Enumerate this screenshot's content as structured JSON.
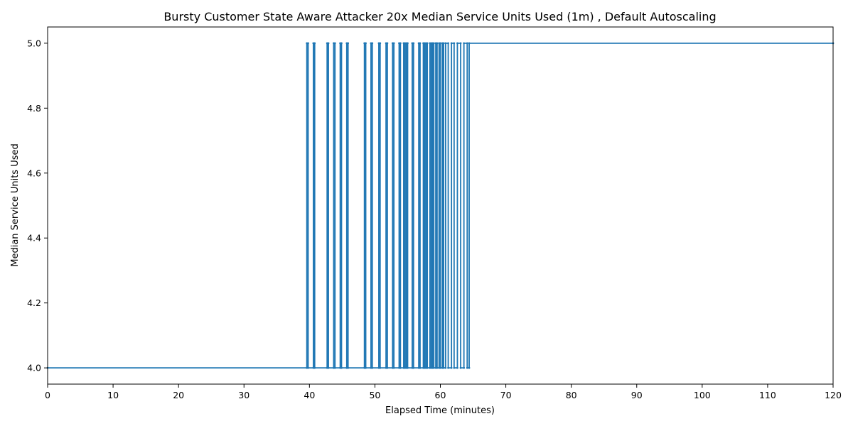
{
  "chart_data": {
    "type": "line",
    "title": "Bursty Customer State Aware Attacker 20x Median Service Units Used (1m) , Default Autoscaling",
    "xlabel": "Elapsed Time (minutes)",
    "ylabel": "Median Service Units Used",
    "xlim": [
      0,
      120
    ],
    "ylim": [
      3.95,
      5.05
    ],
    "xticks": [
      0,
      10,
      20,
      30,
      40,
      50,
      60,
      70,
      80,
      90,
      100,
      110,
      120
    ],
    "yticks": [
      4.0,
      4.2,
      4.4,
      4.6,
      4.8,
      5.0
    ],
    "grid": false,
    "legend": "none",
    "series_color": "#1f77b4",
    "series": [
      {
        "x": [
          0,
          39.6,
          39.6,
          39.8,
          39.8,
          40.6,
          40.6,
          40.8,
          40.8,
          42.7,
          42.7,
          42.9,
          42.9,
          43.7,
          43.7,
          43.9,
          43.9,
          44.7,
          44.7,
          44.9,
          44.9,
          45.7,
          45.7,
          45.9,
          45.9,
          48.4,
          48.4,
          48.6,
          48.6,
          49.4,
          49.4,
          49.6,
          49.6,
          50.6,
          50.6,
          50.8,
          50.8,
          51.7,
          51.7,
          51.9,
          51.9,
          52.7,
          52.7,
          52.9,
          52.9,
          53.7,
          53.7,
          53.9,
          53.9,
          54.4,
          54.4,
          54.6,
          54.6,
          54.8,
          54.8,
          55.0,
          55.0,
          55.7,
          55.7,
          55.9,
          55.9,
          56.7,
          56.7,
          56.9,
          56.9,
          57.4,
          57.4,
          57.6,
          57.6,
          57.8,
          57.8,
          58.0,
          58.0,
          58.4,
          58.4,
          58.6,
          58.6,
          58.8,
          58.8,
          59.0,
          59.0,
          59.3,
          59.3,
          59.5,
          59.5,
          59.8,
          59.8,
          60.0,
          60.0,
          60.3,
          60.3,
          60.5,
          60.5,
          60.8,
          60.8,
          61.2,
          61.2,
          61.7,
          61.7,
          62.1,
          62.1,
          62.6,
          62.6,
          63.1,
          63.1,
          63.6,
          63.6,
          64.1,
          64.1,
          64.4,
          64.4,
          120
        ],
        "y": [
          4.0,
          4.0,
          5.0,
          5.0,
          4.0,
          4.0,
          5.0,
          5.0,
          4.0,
          4.0,
          5.0,
          5.0,
          4.0,
          4.0,
          5.0,
          5.0,
          4.0,
          4.0,
          5.0,
          5.0,
          4.0,
          4.0,
          5.0,
          5.0,
          4.0,
          4.0,
          5.0,
          5.0,
          4.0,
          4.0,
          5.0,
          5.0,
          4.0,
          4.0,
          5.0,
          5.0,
          4.0,
          4.0,
          5.0,
          5.0,
          4.0,
          4.0,
          5.0,
          5.0,
          4.0,
          4.0,
          5.0,
          5.0,
          4.0,
          4.0,
          5.0,
          5.0,
          4.0,
          4.0,
          5.0,
          5.0,
          4.0,
          4.0,
          5.0,
          5.0,
          4.0,
          4.0,
          5.0,
          5.0,
          4.0,
          4.0,
          5.0,
          5.0,
          4.0,
          4.0,
          5.0,
          5.0,
          4.0,
          4.0,
          5.0,
          5.0,
          4.0,
          4.0,
          5.0,
          5.0,
          4.0,
          4.0,
          5.0,
          5.0,
          4.0,
          4.0,
          5.0,
          5.0,
          4.0,
          4.0,
          5.0,
          5.0,
          4.0,
          4.0,
          5.0,
          5.0,
          4.0,
          4.0,
          5.0,
          5.0,
          4.0,
          4.0,
          5.0,
          5.0,
          4.0,
          4.0,
          5.0,
          5.0,
          4.0,
          4.0,
          5.0,
          5.0
        ]
      }
    ]
  }
}
